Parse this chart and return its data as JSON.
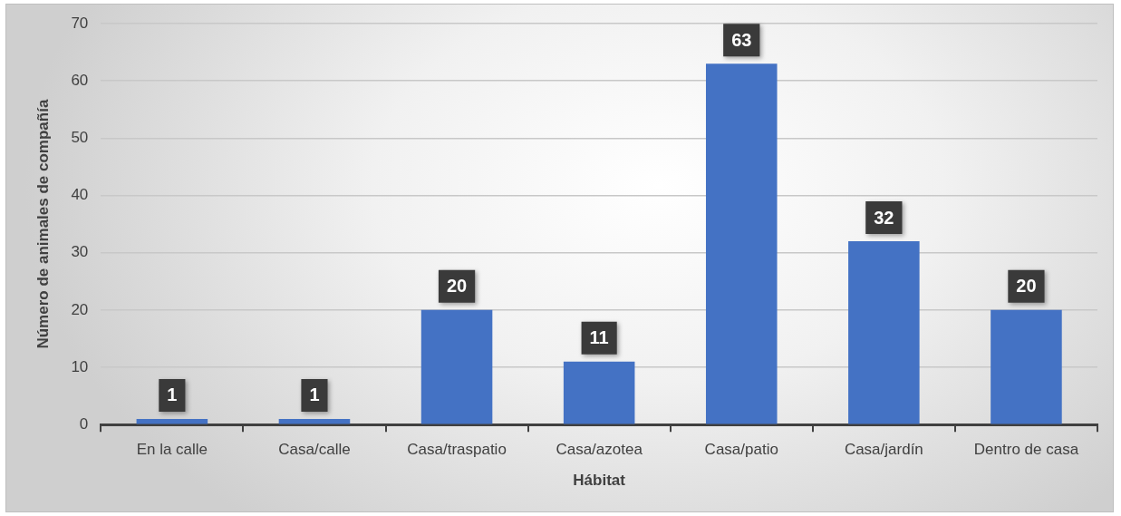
{
  "chart_data": {
    "type": "bar",
    "xlabel": "Hábitat",
    "ylabel": "Número de animales de compañía",
    "categories": [
      "En la calle",
      "Casa/calle",
      "Casa/traspatio",
      "Casa/azotea",
      "Casa/patio",
      "Casa/jardín",
      "Dentro de casa"
    ],
    "values": [
      1,
      1,
      20,
      11,
      63,
      32,
      20
    ],
    "color": "#4472c4",
    "ylim": [
      0,
      70
    ],
    "yticks": [
      0,
      10,
      20,
      30,
      40,
      50,
      60,
      70
    ],
    "grid": "y",
    "data_labels": true
  }
}
